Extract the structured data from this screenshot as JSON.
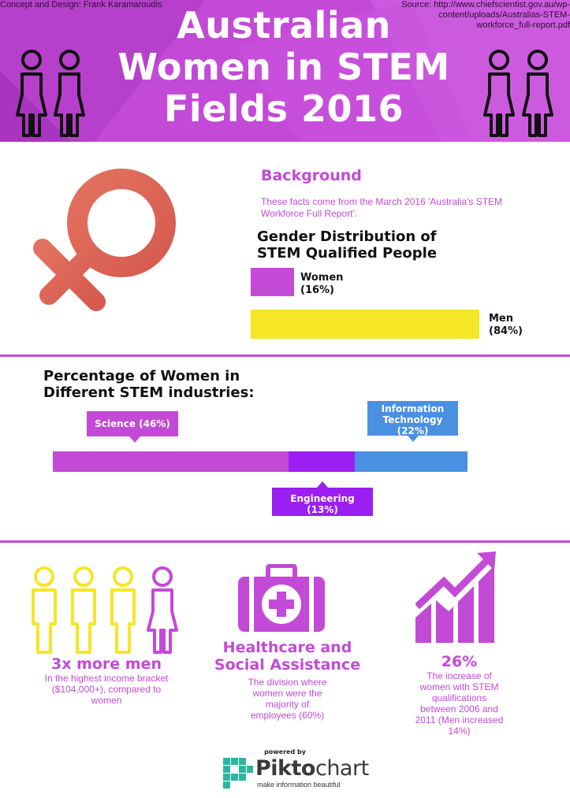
{
  "header": {
    "credit": "Concept and Design: Frank Karamaroudis",
    "source_line1": "Source:   http://www.chiefscientist.gov.au/wp-",
    "source_line2": "content/uploads/Australias-STEM-",
    "source_line3": "workforce_full-report.pdf",
    "title_line1": "Australian",
    "title_line2": "Women in STEM",
    "title_line3": "Fields 2016"
  },
  "background": {
    "heading": "Background",
    "text": "These facts come from the March 2016 'Australia's STEM Workforce Full Report'."
  },
  "gender_distribution": {
    "title_line1": "Gender Distribution of",
    "title_line2": "STEM Qualified People",
    "women_label": "Women",
    "women_value": "(16%)",
    "men_label": "Men",
    "men_value": "(84%)"
  },
  "industries": {
    "title_line1": "Percentage of Women in",
    "title_line2": "Different STEM industries:",
    "science_label": "Science (46%)",
    "it_line1": "Information",
    "it_line2": "Technology",
    "it_line3": "(22%)",
    "eng_line1": "Engineering",
    "eng_line2": "(13%)"
  },
  "stats": {
    "men_big": "3x more men",
    "men_text_line1": "In the highest income bracket",
    "men_text_line2": "($104,000+), compared to",
    "men_text_line3": "women",
    "health_big_line1": "Healthcare and",
    "health_big_line2": "Social Assistance",
    "health_text_line1": "The division where",
    "health_text_line2": "women were the",
    "health_text_line3": "majority of",
    "health_text_line4": "employees (60%)",
    "growth_big": "26%",
    "growth_text_line1": "The increase of",
    "growth_text_line2": "women with STEM",
    "growth_text_line3": "qualifications",
    "growth_text_line4": "between 2006 and",
    "growth_text_line5": "2011 (Men increased",
    "growth_text_line6": "14%)"
  },
  "footer": {
    "powered": "powered by",
    "brand_a": "Pikto",
    "brand_b": "chart",
    "tagline": "make information beautiful"
  },
  "chart_data": [
    {
      "type": "bar",
      "title": "Gender Distribution of STEM Qualified People",
      "categories": [
        "Women",
        "Men"
      ],
      "values": [
        16,
        84
      ],
      "colors": [
        "#c24ad6",
        "#f5e626"
      ]
    },
    {
      "type": "bar",
      "title": "Percentage of Women in Different STEM industries:",
      "categories": [
        "Science",
        "Engineering",
        "Information Technology"
      ],
      "values": [
        46,
        13,
        22
      ],
      "colors": [
        "#c24ad6",
        "#9b1ff0",
        "#4a90e2"
      ]
    }
  ],
  "colors": {
    "accent": "#c24ad6",
    "yellow": "#f5e626",
    "violet": "#9b1ff0",
    "blue": "#4a90e2",
    "coral": "#e06a5a"
  },
  "icons": [
    "woman-icon",
    "venus-icon",
    "medical-kit-icon",
    "growth-chart-icon",
    "piktochart-logo-icon"
  ]
}
